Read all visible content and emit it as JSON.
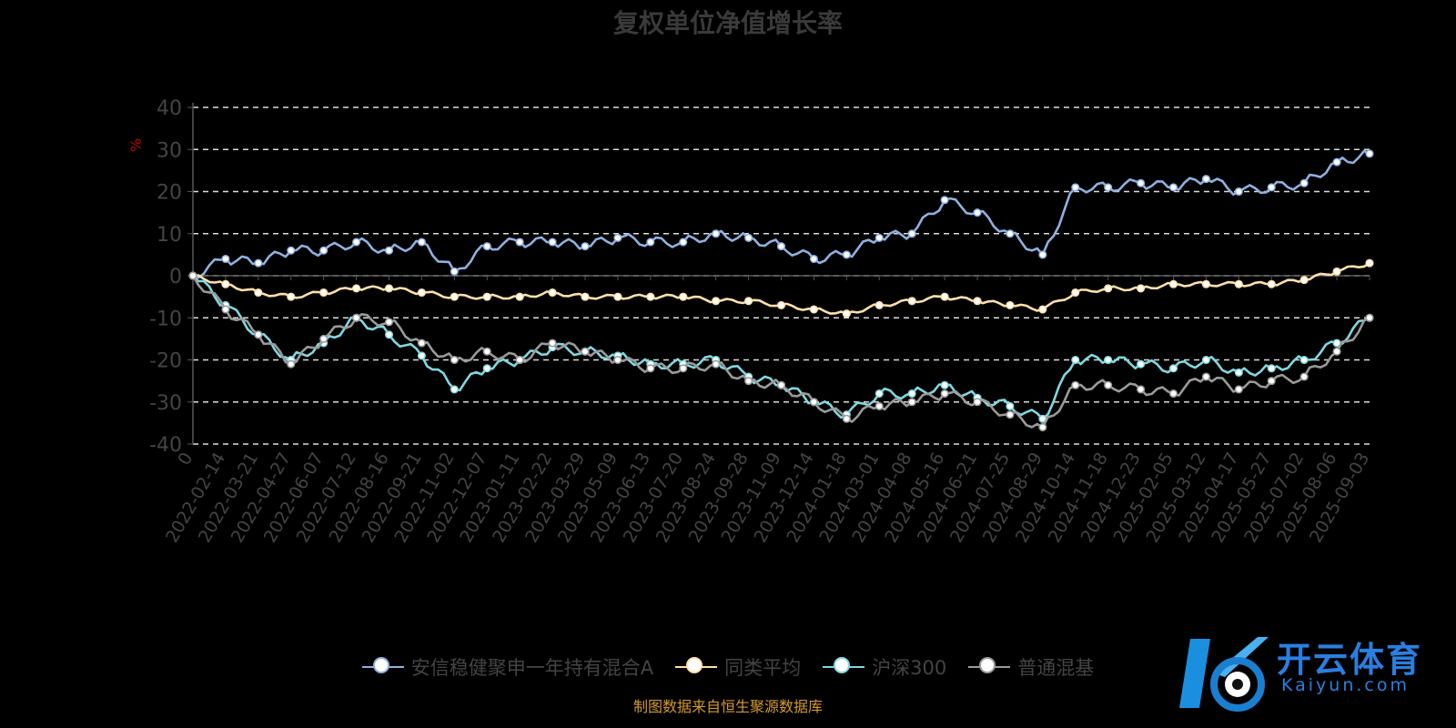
{
  "title": "复权单位净值增长率",
  "unit_label": "%",
  "source": "制图数据来自恒生聚源数据库",
  "logo": {
    "text": "开云体育",
    "subtext": "Kaiyun.com"
  },
  "chart_data": {
    "type": "line",
    "title": "复权单位净值增长率",
    "ylabel": "%",
    "ylim": [
      -40,
      40
    ],
    "yticks": [
      40,
      30,
      20,
      10,
      0,
      -10,
      -20,
      -30,
      -40
    ],
    "grid": true,
    "legend_position": "bottom",
    "x": [
      "0",
      "2022-02-14",
      "2022-03-21",
      "2022-04-27",
      "2022-06-07",
      "2022-07-12",
      "2022-08-16",
      "2022-09-21",
      "2022-11-02",
      "2022-12-07",
      "2023-01-11",
      "2023-02-22",
      "2023-03-29",
      "2023-05-09",
      "2023-06-13",
      "2023-07-20",
      "2023-08-24",
      "2023-09-28",
      "2023-11-09",
      "2023-12-14",
      "2024-01-18",
      "2024-03-01",
      "2024-04-08",
      "2024-05-16",
      "2024-06-21",
      "2024-07-25",
      "2024-08-29",
      "2024-10-14",
      "2024-11-18",
      "2024-12-23",
      "2025-02-05",
      "2025-03-12",
      "2025-04-17",
      "2025-05-27",
      "2025-07-02",
      "2025-08-06",
      "2025-09-03"
    ],
    "series": [
      {
        "name": "安信稳健聚申一年持有混合A",
        "color": "#8fb0e0",
        "values": [
          0,
          4,
          3,
          6,
          6,
          8,
          6,
          8,
          1,
          7,
          8,
          8,
          7,
          9,
          8,
          8,
          10,
          9,
          7,
          4,
          5,
          9,
          10,
          18,
          15,
          10,
          5,
          21,
          21,
          22,
          21,
          23,
          20,
          21,
          22,
          27,
          29
        ]
      },
      {
        "name": "同类平均",
        "color": "#ffe0a8",
        "values": [
          0,
          -2,
          -4,
          -5,
          -4,
          -3,
          -3,
          -4,
          -5,
          -5,
          -5,
          -4,
          -5,
          -5,
          -5,
          -5,
          -6,
          -6,
          -7,
          -8,
          -9,
          -7,
          -6,
          -5,
          -6,
          -7,
          -8,
          -4,
          -3,
          -3,
          -2,
          -2,
          -2,
          -2,
          -1,
          1,
          3
        ]
      },
      {
        "name": "沪深300",
        "color": "#7fd8e0",
        "values": [
          0,
          -7,
          -14,
          -20,
          -16,
          -10,
          -14,
          -19,
          -27,
          -22,
          -20,
          -17,
          -18,
          -19,
          -21,
          -21,
          -20,
          -24,
          -26,
          -30,
          -33,
          -28,
          -28,
          -26,
          -29,
          -31,
          -34,
          -20,
          -20,
          -21,
          -22,
          -20,
          -23,
          -22,
          -20,
          -16,
          -10
        ]
      },
      {
        "name": "普通混基",
        "color": "#9a9a9a",
        "values": [
          0,
          -8,
          -14,
          -21,
          -15,
          -10,
          -11,
          -16,
          -20,
          -18,
          -20,
          -16,
          -18,
          -20,
          -22,
          -22,
          -21,
          -25,
          -26,
          -30,
          -34,
          -31,
          -30,
          -28,
          -30,
          -33,
          -36,
          -26,
          -26,
          -27,
          -28,
          -24,
          -27,
          -25,
          -24,
          -18,
          -10
        ]
      }
    ]
  },
  "legend": [
    {
      "label": "安信稳健聚申一年持有混合A",
      "color": "#8fb0e0"
    },
    {
      "label": "同类平均",
      "color": "#ffe0a8"
    },
    {
      "label": "沪深300",
      "color": "#7fd8e0"
    },
    {
      "label": "普通混基",
      "color": "#9a9a9a"
    }
  ]
}
